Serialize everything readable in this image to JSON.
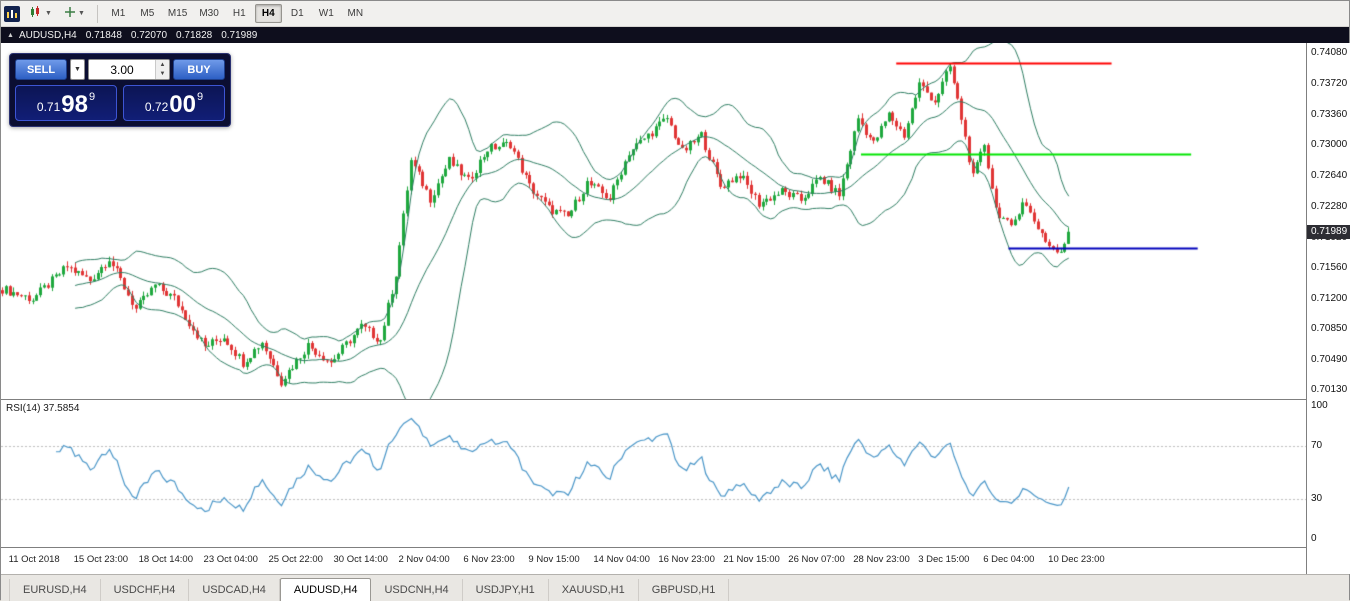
{
  "toolbar": {
    "timeframes": [
      "M1",
      "M5",
      "M15",
      "M30",
      "H1",
      "H4",
      "D1",
      "W1",
      "MN"
    ],
    "active_timeframe": "H4"
  },
  "chart_header": {
    "symbol": "AUDUSD,H4",
    "open": "0.71848",
    "high": "0.72070",
    "low": "0.71828",
    "close": "0.71989"
  },
  "one_click": {
    "sell_label": "SELL",
    "buy_label": "BUY",
    "volume": "3.00",
    "bid": {
      "big": "0.71",
      "pips": "98",
      "pipette": "9"
    },
    "ask": {
      "big": "0.72",
      "pips": "00",
      "pipette": "9"
    }
  },
  "footer": {
    "tabs": [
      "EURUSD,H4",
      "USDCHF,H4",
      "USDCAD,H4",
      "AUDUSD,H4",
      "USDCNH,H4",
      "USDJPY,H1",
      "XAUUSD,H1",
      "GBPUSD,H1"
    ],
    "active_tab": "AUDUSD,H4"
  },
  "chart_data": {
    "type": "candlestick",
    "title": "AUDUSD,H4",
    "price_axis": {
      "ticks": [
        "0.74080",
        "0.73720",
        "0.73360",
        "0.73000",
        "0.72640",
        "0.72280",
        "0.71920",
        "0.71560",
        "0.71200",
        "0.70850",
        "0.70490",
        "0.70130"
      ],
      "current": "0.71989",
      "view_max": 0.742,
      "view_min": 0.7003
    },
    "time_axis": {
      "labels": [
        "11 Oct 2018",
        "15 Oct 23:00",
        "18 Oct 14:00",
        "23 Oct 04:00",
        "25 Oct 22:00",
        "30 Oct 14:00",
        "2 Nov 04:00",
        "6 Nov 23:00",
        "9 Nov 15:00",
        "14 Nov 04:00",
        "16 Nov 23:00",
        "21 Nov 15:00",
        "26 Nov 07:00",
        "28 Nov 23:00",
        "3 Dec 15:00",
        "6 Dec 04:00",
        "10 Dec 23:00"
      ],
      "label_indices": [
        2,
        19,
        36,
        53,
        70,
        87,
        104,
        121,
        138,
        155,
        172,
        189,
        206,
        223,
        240,
        257,
        274
      ]
    },
    "candles": 280,
    "right_margin_frac": 0.18,
    "waypoints": [
      [
        0,
        0.7132
      ],
      [
        8,
        0.712
      ],
      [
        17,
        0.7158
      ],
      [
        23,
        0.7142
      ],
      [
        28,
        0.7168
      ],
      [
        35,
        0.7108
      ],
      [
        40,
        0.7136
      ],
      [
        45,
        0.7121
      ],
      [
        53,
        0.7064
      ],
      [
        58,
        0.7076
      ],
      [
        63,
        0.7046
      ],
      [
        68,
        0.707
      ],
      [
        73,
        0.7024
      ],
      [
        80,
        0.7066
      ],
      [
        86,
        0.7046
      ],
      [
        94,
        0.7088
      ],
      [
        99,
        0.7072
      ],
      [
        103,
        0.715
      ],
      [
        107,
        0.7282
      ],
      [
        112,
        0.7238
      ],
      [
        117,
        0.7282
      ],
      [
        122,
        0.7258
      ],
      [
        127,
        0.7296
      ],
      [
        133,
        0.7302
      ],
      [
        138,
        0.7252
      ],
      [
        143,
        0.7226
      ],
      [
        148,
        0.7216
      ],
      [
        153,
        0.7256
      ],
      [
        159,
        0.7238
      ],
      [
        164,
        0.7292
      ],
      [
        169,
        0.7312
      ],
      [
        174,
        0.7332
      ],
      [
        178,
        0.7292
      ],
      [
        183,
        0.7312
      ],
      [
        188,
        0.7252
      ],
      [
        193,
        0.7266
      ],
      [
        198,
        0.7232
      ],
      [
        204,
        0.7246
      ],
      [
        209,
        0.7236
      ],
      [
        214,
        0.7262
      ],
      [
        219,
        0.7242
      ],
      [
        224,
        0.7332
      ],
      [
        228,
        0.7302
      ],
      [
        232,
        0.7336
      ],
      [
        236,
        0.7312
      ],
      [
        240,
        0.7372
      ],
      [
        244,
        0.7352
      ],
      [
        248,
        0.7392
      ],
      [
        251,
        0.7332
      ],
      [
        254,
        0.7262
      ],
      [
        257,
        0.7302
      ],
      [
        260,
        0.7226
      ],
      [
        264,
        0.7202
      ],
      [
        267,
        0.7236
      ],
      [
        270,
        0.7212
      ],
      [
        274,
        0.7182
      ],
      [
        277,
        0.7172
      ],
      [
        279,
        0.71989
      ]
    ],
    "jitter_amp": 0.00055,
    "wick_amp": 0.0006,
    "last_close": 0.71989,
    "indicators": {
      "bollinger": {
        "period": 20,
        "deviation": 2,
        "color": "#2e7d62"
      },
      "rsi": {
        "period": 14,
        "display": "RSI(14) 37.5854",
        "value": 37.5854,
        "color": "#4a96c8",
        "levels": [
          30,
          70
        ],
        "scale_ticks": [
          "100",
          "70",
          "30",
          "0"
        ],
        "range": [
          0,
          100
        ]
      }
    },
    "objects": {
      "hlines": [
        {
          "color": "#ff0000",
          "price": 0.7396,
          "from_frac": 0.686,
          "to_frac": 0.851,
          "width": 2
        },
        {
          "color": "#00e400",
          "price": 0.729,
          "from_frac": 0.659,
          "to_frac": 0.912,
          "width": 2
        },
        {
          "color": "#0000bb",
          "price": 0.718,
          "from_frac": 0.772,
          "to_frac": 0.917,
          "width": 2
        }
      ]
    },
    "colors": {
      "bull": "#1fa83e",
      "bear": "#e03535",
      "background": "#ffffff"
    }
  }
}
